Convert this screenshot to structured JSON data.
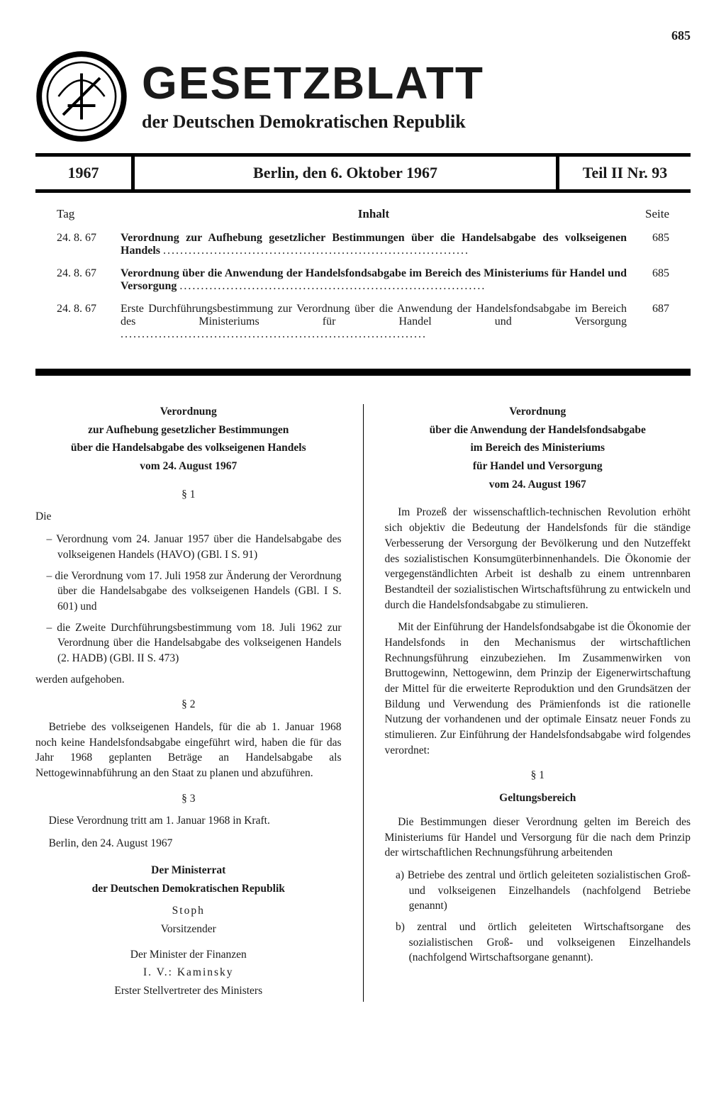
{
  "page_number_top": "685",
  "masthead": {
    "title": "GESETZBLATT",
    "subtitle": "der Deutschen Demokratischen Republik"
  },
  "header_bar": {
    "year": "1967",
    "date": "Berlin, den 6. Oktober 1967",
    "issue": "Teil II Nr. 93"
  },
  "toc": {
    "header_tag": "Tag",
    "header_inhalt": "Inhalt",
    "header_seite": "Seite",
    "rows": [
      {
        "date": "24. 8. 67",
        "text": "Verordnung zur Aufhebung gesetzlicher Bestimmungen über die Handelsabgabe des volkseigenen Handels",
        "bold": true,
        "page": "685"
      },
      {
        "date": "24. 8. 67",
        "text": "Verordnung über die Anwendung der Handelsfondsabgabe im Bereich des Ministeriums für Handel und Versorgung",
        "bold": true,
        "page": "685"
      },
      {
        "date": "24. 8. 67",
        "text": "Erste Durchführungsbestimmung zur Verordnung über die Anwendung der Handelsfondsabgabe im Bereich des Ministeriums für Handel und Versorgung",
        "bold": false,
        "page": "687"
      }
    ]
  },
  "left": {
    "title_l1": "Verordnung",
    "title_l2": "zur Aufhebung gesetzlicher Bestimmungen",
    "title_l3": "über die Handelsabgabe des volkseigenen Handels",
    "date": "vom 24. August 1967",
    "s1": "§ 1",
    "die": "Die",
    "item1": "– Verordnung vom 24. Januar 1957 über die Handelsabgabe des volkseigenen Handels (HAVO) (GBl. I S. 91)",
    "item2": "– die Verordnung vom 17. Juli 1958 zur Änderung der Verordnung über die Handelsabgabe des volkseigenen Handels (GBl. I S. 601) und",
    "item3": "– die Zweite Durchführungsbestimmung vom 18. Juli 1962 zur Verordnung über die Handelsabgabe des volkseigenen Handels (2. HADB) (GBl. II S. 473)",
    "aufgehoben": "werden aufgehoben.",
    "s2": "§ 2",
    "p2": "Betriebe des volkseigenen Handels, für die ab 1. Januar 1968 noch keine Handelsfondsabgabe eingeführt wird, haben die für das Jahr 1968 geplanten Beträge an Handelsabgabe als Nettogewinnabführung an den Staat zu planen und abzuführen.",
    "s3": "§ 3",
    "p3": "Diese Verordnung tritt am 1. Januar 1968 in Kraft.",
    "place_date": "Berlin, den 24. August 1967",
    "sig_org1": "Der Ministerrat",
    "sig_org2": "der Deutschen Demokratischen Republik",
    "sig_name1": "Stoph",
    "sig_role1": "Vorsitzender",
    "sig_org3": "Der Minister der Finanzen",
    "sig_name2": "I. V.: Kaminsky",
    "sig_role2": "Erster Stellvertreter des Ministers"
  },
  "right": {
    "title_l1": "Verordnung",
    "title_l2": "über die Anwendung der Handelsfondsabgabe",
    "title_l3": "im Bereich des Ministeriums",
    "title_l4": "für Handel und Versorgung",
    "date": "vom 24. August 1967",
    "p1": "Im Prozeß der wissenschaftlich-technischen Revolution erhöht sich objektiv die Bedeutung der Handelsfonds für die ständige Verbesserung der Versorgung der Bevölkerung und den Nutzeffekt des sozialistischen Konsumgüterbinnenhandels. Die Ökonomie der vergegenständlichten Arbeit ist deshalb zu einem untrennbaren Bestandteil der sozialistischen Wirtschaftsführung zu entwickeln und durch die Handelsfondsabgabe zu stimulieren.",
    "p2": "Mit der Einführung der Handelsfondsabgabe ist die Ökonomie der Handelsfonds in den Mechanismus der wirtschaftlichen Rechnungsführung einzubeziehen. Im Zusammenwirken von Bruttogewinn, Nettogewinn, dem Prinzip der Eigenerwirtschaftung der Mittel für die erweiterte Reproduktion und den Grundsätzen der Bildung und Verwendung des Prämienfonds ist die rationelle Nutzung der vorhandenen und der optimale Einsatz neuer Fonds zu stimulieren. Zur Einführung der Handelsfondsabgabe wird folgendes verordnet:",
    "s1": "§ 1",
    "s1_heading": "Geltungsbereich",
    "p3": "Die Bestimmungen dieser Verordnung gelten im Bereich des Ministeriums für Handel und Versorgung für die nach dem Prinzip der wirtschaftlichen Rechnungsführung arbeitenden",
    "item_a": "a) Betriebe des zentral und örtlich geleiteten sozialistischen Groß- und volkseigenen Einzelhandels (nachfolgend Betriebe genannt)",
    "item_b": "b) zentral und örtlich geleiteten Wirtschaftsorgane des sozialistischen Groß- und volkseigenen Einzelhandels (nachfolgend Wirtschaftsorgane genannt)."
  }
}
